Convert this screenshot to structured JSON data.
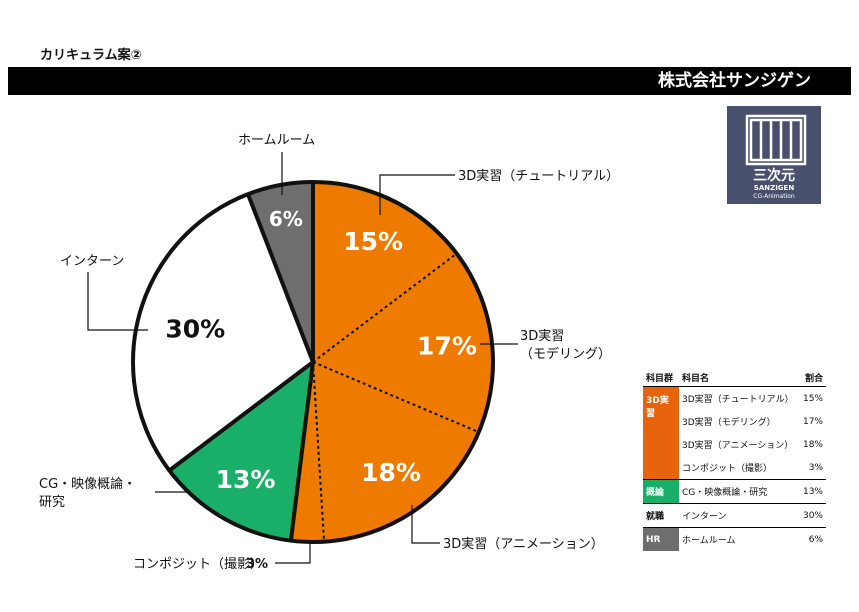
{
  "header": {
    "title": "カリキュラム案②",
    "company": "株式会社サンジゲン"
  },
  "logo": {
    "main": "三次元",
    "sub1": "SANZIGEN",
    "sub2": "CG-Animation"
  },
  "colors": {
    "orange": "#ee7a00",
    "green": "#1aaf68",
    "gray": "#6e6e6e",
    "white": "#ffffff",
    "orange_dark": "#e8640c",
    "navy": "#48506d"
  },
  "chart_data": {
    "type": "pie",
    "slices": [
      {
        "label": "3D実習（チュートリアル）",
        "value": 15,
        "display": "15%",
        "color": "#ee7a00",
        "group": "3D実習"
      },
      {
        "label": "3D実習（モデリング）",
        "value": 17,
        "display": "17%",
        "color": "#ee7a00",
        "group": "3D実習"
      },
      {
        "label": "3D実習（アニメーション）",
        "value": 18,
        "display": "18%",
        "color": "#ee7a00",
        "group": "3D実習"
      },
      {
        "label": "コンポジット（撮影）",
        "value": 3,
        "display": "3%",
        "color": "#ee7a00",
        "group": "3D実習"
      },
      {
        "label": "CG・映像概論・研究",
        "value": 13,
        "display": "13%",
        "color": "#1aaf68",
        "group": "概論"
      },
      {
        "label": "インターン",
        "value": 30,
        "display": "30%",
        "color": "#ffffff",
        "group": "就職"
      },
      {
        "label": "ホームルーム",
        "value": 6,
        "display": "6%",
        "color": "#6e6e6e",
        "group": "HR"
      }
    ],
    "callouts": {
      "tutorial": "3D実習（チュートリアル）",
      "modeling_1": "3D実習",
      "modeling_2": "（モデリング）",
      "animation": "3D実習（アニメーション）",
      "composite": "コンポジット（撮影）",
      "composite_pct": "3%",
      "cg_1": "CG・映像概論・",
      "cg_2": "研究",
      "intern": "インターン",
      "homeroom": "ホームルーム"
    }
  },
  "legend_table": {
    "headers": {
      "group": "科目群",
      "subject": "科目名",
      "ratio": "割合"
    },
    "groups": {
      "g3d": "3D実習",
      "gairon": "概論",
      "shushoku": "就職",
      "hr": "HR"
    },
    "rows": [
      {
        "subject": "3D実習（チュートリアル）",
        "ratio": "15%"
      },
      {
        "subject": "3D実習（モデリング）",
        "ratio": "17%"
      },
      {
        "subject": "3D実習（アニメーション）",
        "ratio": "18%"
      },
      {
        "subject": "コンポジット（撮影）",
        "ratio": "3%"
      },
      {
        "subject": "CG・映像概論・研究",
        "ratio": "13%"
      },
      {
        "subject": "インターン",
        "ratio": "30%"
      },
      {
        "subject": "ホームルーム",
        "ratio": "6%"
      }
    ]
  }
}
